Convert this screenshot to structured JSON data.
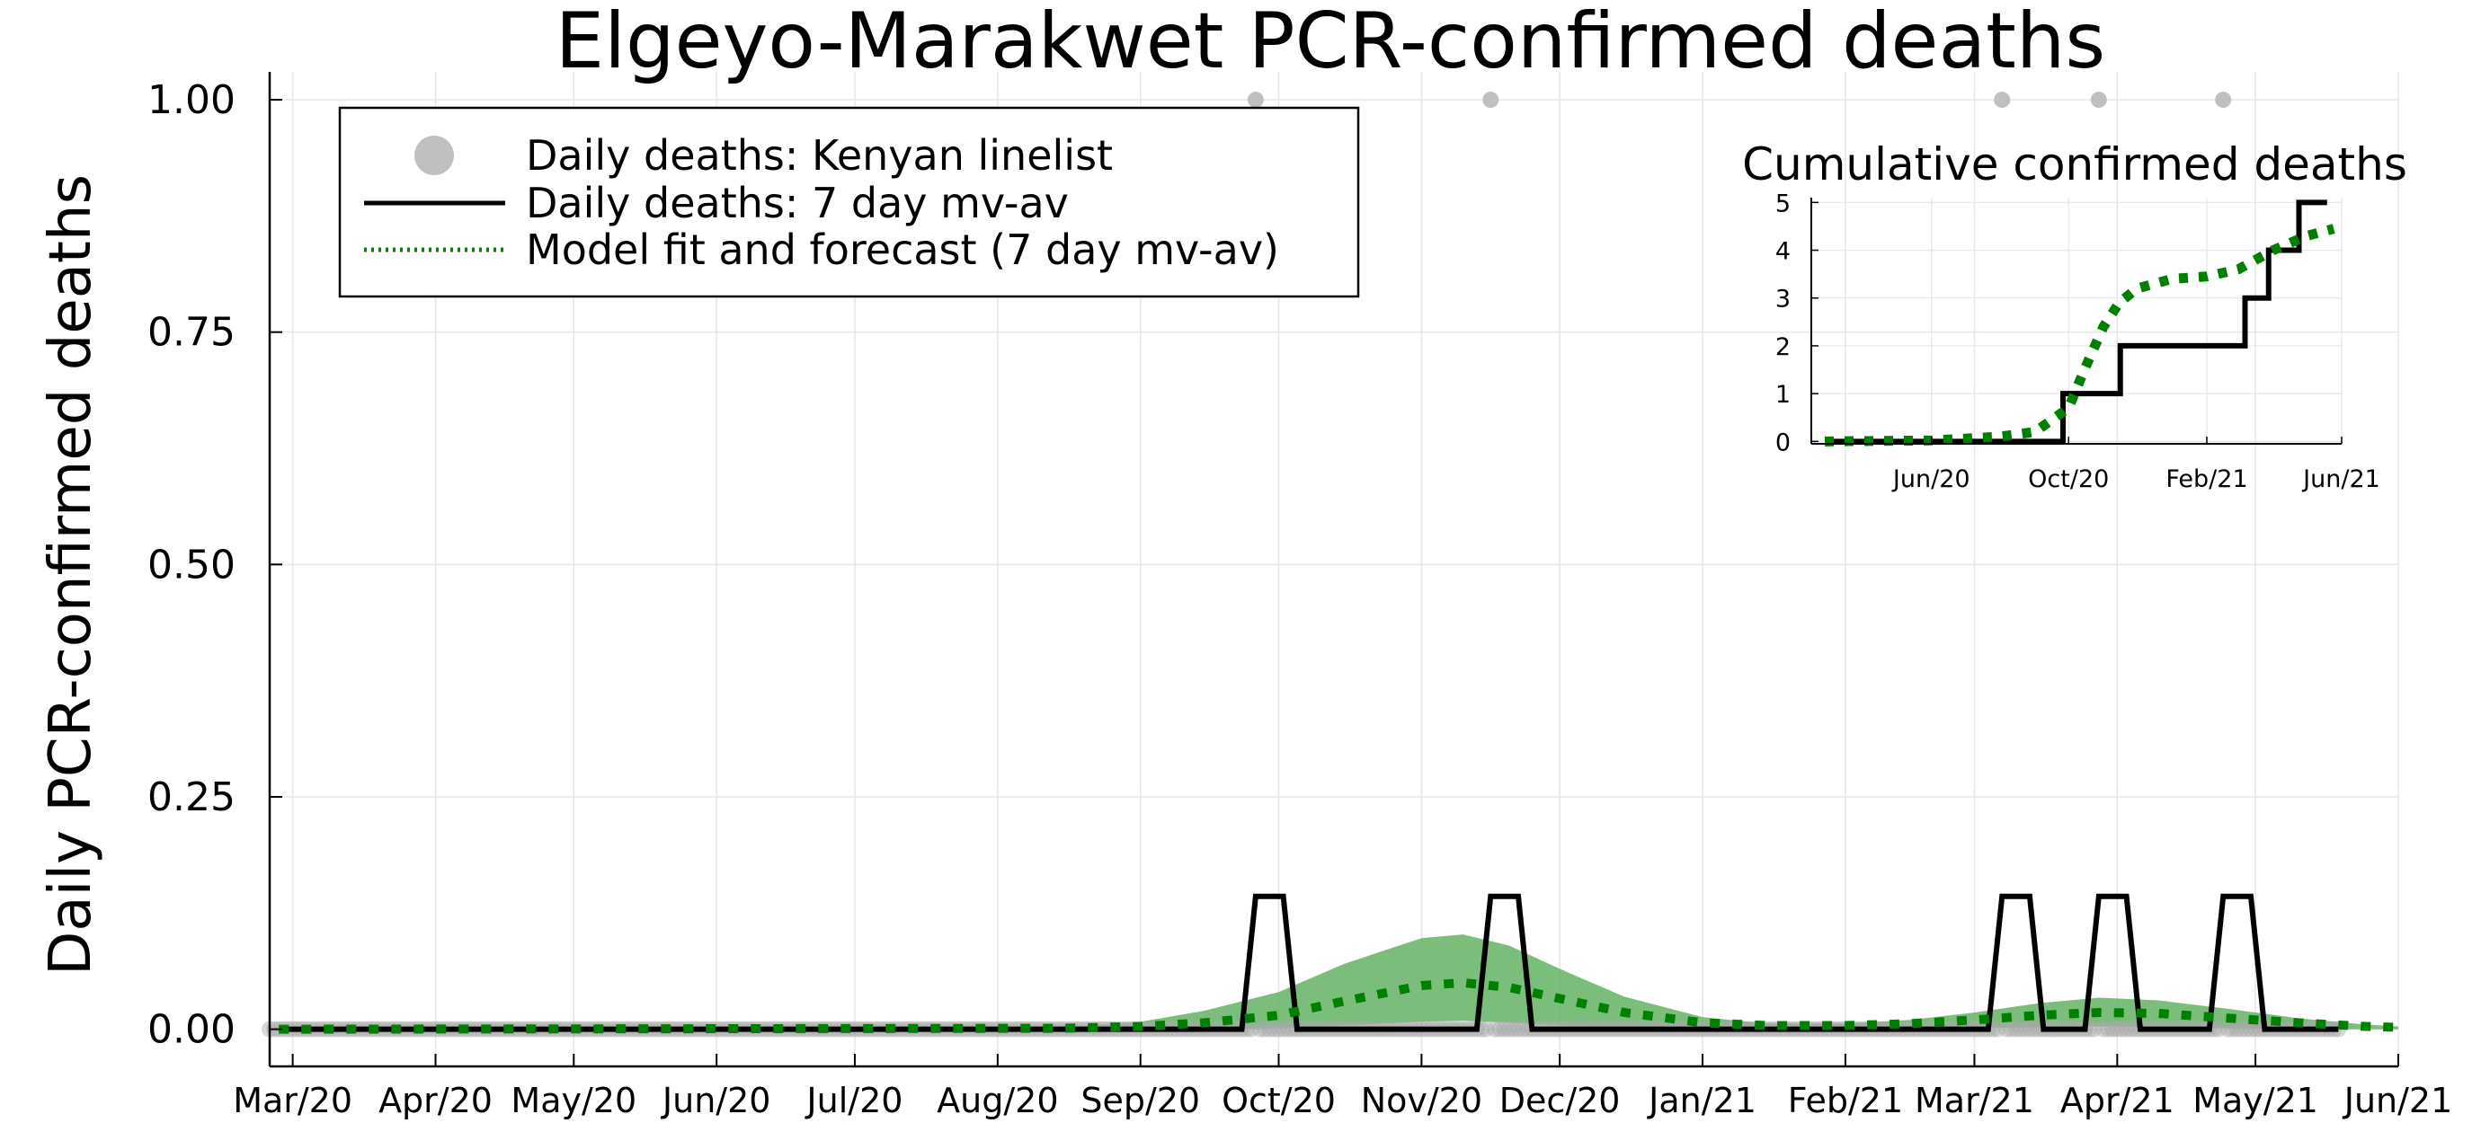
{
  "chart_data": [
    {
      "type": "line",
      "title": "Elgeyo-Marakwet PCR-confirmed deaths",
      "ylabel": "Daily PCR-confirmed deaths",
      "xlabel": "",
      "x_type": "date",
      "xlim": [
        "2020-02-25",
        "2021-06-01"
      ],
      "ylim": [
        -0.04,
        1.03
      ],
      "x_ticks": [
        "2020-03-01",
        "2020-04-01",
        "2020-05-01",
        "2020-06-01",
        "2020-07-01",
        "2020-08-01",
        "2020-09-01",
        "2020-10-01",
        "2020-11-01",
        "2020-12-01",
        "2021-01-01",
        "2021-02-01",
        "2021-03-01",
        "2021-04-01",
        "2021-05-01",
        "2021-06-01"
      ],
      "x_tick_labels": [
        "Mar/20",
        "Apr/20",
        "May/20",
        "Jun/20",
        "Jul/20",
        "Aug/20",
        "Sep/20",
        "Oct/20",
        "Nov/20",
        "Dec/20",
        "Jan/21",
        "Feb/21",
        "Mar/21",
        "Apr/21",
        "May/21",
        "Jun/21"
      ],
      "y_ticks": [
        0,
        0.25,
        0.5,
        0.75,
        1.0
      ],
      "y_tick_labels": [
        "0.00",
        "0.25",
        "0.50",
        "0.75",
        "1.00"
      ],
      "grid": true,
      "legend_position": "top-left",
      "series": [
        {
          "name": "Daily deaths: Kenyan linelist",
          "kind": "scatter",
          "color": "#c0c0c0",
          "nonzero_points": [
            {
              "x": "2020-09-26",
              "y": 1
            },
            {
              "x": "2020-11-16",
              "y": 1
            },
            {
              "x": "2021-03-07",
              "y": 1
            },
            {
              "x": "2021-03-28",
              "y": 1
            },
            {
              "x": "2021-04-24",
              "y": 1
            }
          ],
          "zero_baseline_range": [
            "2020-02-25",
            "2021-05-19"
          ]
        },
        {
          "name": "Daily deaths: 7 day mv-av",
          "kind": "line",
          "color": "#000000",
          "points": [
            {
              "x": "2020-02-27",
              "y": 0
            },
            {
              "x": "2020-09-23",
              "y": 0
            },
            {
              "x": "2020-09-26",
              "y": 0.1429
            },
            {
              "x": "2020-10-02",
              "y": 0.1429
            },
            {
              "x": "2020-10-05",
              "y": 0
            },
            {
              "x": "2020-11-13",
              "y": 0
            },
            {
              "x": "2020-11-16",
              "y": 0.1429
            },
            {
              "x": "2020-11-22",
              "y": 0.1429
            },
            {
              "x": "2020-11-25",
              "y": 0
            },
            {
              "x": "2021-03-04",
              "y": 0
            },
            {
              "x": "2021-03-07",
              "y": 0.1429
            },
            {
              "x": "2021-03-13",
              "y": 0.1429
            },
            {
              "x": "2021-03-16",
              "y": 0
            },
            {
              "x": "2021-03-25",
              "y": 0
            },
            {
              "x": "2021-03-28",
              "y": 0.1429
            },
            {
              "x": "2021-04-03",
              "y": 0.1429
            },
            {
              "x": "2021-04-06",
              "y": 0
            },
            {
              "x": "2021-04-21",
              "y": 0
            },
            {
              "x": "2021-04-24",
              "y": 0.1429
            },
            {
              "x": "2021-04-30",
              "y": 0.1429
            },
            {
              "x": "2021-05-03",
              "y": 0
            },
            {
              "x": "2021-05-19",
              "y": 0
            }
          ]
        },
        {
          "name": "Model fit and forecast (7 day mv-av)",
          "kind": "dotted-line",
          "color": "#008000",
          "band_color": "#5aae5a",
          "points": [
            {
              "x": "2020-02-27",
              "y": 0,
              "lo": 0,
              "hi": 0
            },
            {
              "x": "2020-08-15",
              "y": 0.001,
              "lo": 0,
              "hi": 0.002
            },
            {
              "x": "2020-09-01",
              "y": 0.003,
              "lo": 0,
              "hi": 0.008
            },
            {
              "x": "2020-09-15",
              "y": 0.007,
              "lo": 0,
              "hi": 0.02
            },
            {
              "x": "2020-10-01",
              "y": 0.015,
              "lo": 0.001,
              "hi": 0.04
            },
            {
              "x": "2020-10-15",
              "y": 0.03,
              "lo": 0.004,
              "hi": 0.07
            },
            {
              "x": "2020-11-01",
              "y": 0.047,
              "lo": 0.008,
              "hi": 0.098
            },
            {
              "x": "2020-11-10",
              "y": 0.05,
              "lo": 0.009,
              "hi": 0.102
            },
            {
              "x": "2020-11-20",
              "y": 0.045,
              "lo": 0.007,
              "hi": 0.09
            },
            {
              "x": "2020-12-01",
              "y": 0.033,
              "lo": 0.004,
              "hi": 0.065
            },
            {
              "x": "2020-12-15",
              "y": 0.018,
              "lo": 0.002,
              "hi": 0.035
            },
            {
              "x": "2021-01-01",
              "y": 0.007,
              "lo": 0.001,
              "hi": 0.013
            },
            {
              "x": "2021-01-15",
              "y": 0.004,
              "lo": 0,
              "hi": 0.006
            },
            {
              "x": "2021-02-01",
              "y": 0.004,
              "lo": 0,
              "hi": 0.006
            },
            {
              "x": "2021-02-15",
              "y": 0.006,
              "lo": 0,
              "hi": 0.01
            },
            {
              "x": "2021-03-01",
              "y": 0.01,
              "lo": 0.001,
              "hi": 0.018
            },
            {
              "x": "2021-03-15",
              "y": 0.015,
              "lo": 0.002,
              "hi": 0.028
            },
            {
              "x": "2021-03-28",
              "y": 0.018,
              "lo": 0.003,
              "hi": 0.034
            },
            {
              "x": "2021-04-10",
              "y": 0.017,
              "lo": 0.002,
              "hi": 0.031
            },
            {
              "x": "2021-04-25",
              "y": 0.012,
              "lo": 0.001,
              "hi": 0.022
            },
            {
              "x": "2021-05-10",
              "y": 0.007,
              "lo": 0,
              "hi": 0.012
            },
            {
              "x": "2021-05-25",
              "y": 0.003,
              "lo": 0,
              "hi": 0.005
            },
            {
              "x": "2021-06-01",
              "y": 0.002,
              "lo": 0,
              "hi": 0.003
            }
          ]
        }
      ]
    },
    {
      "type": "line",
      "title": "Cumulative confirmed deaths",
      "position": "inset-top-right",
      "x_type": "date",
      "xlim": [
        "2020-02-15",
        "2021-06-01"
      ],
      "ylim": [
        -0.05,
        5.1
      ],
      "x_ticks": [
        "2020-06-01",
        "2020-10-01",
        "2021-02-01",
        "2021-06-01"
      ],
      "x_tick_labels": [
        "Jun/20",
        "Oct/20",
        "Feb/21",
        "Jun/21"
      ],
      "y_ticks": [
        0,
        1,
        2,
        3,
        4,
        5
      ],
      "y_tick_labels": [
        "0",
        "1",
        "2",
        "3",
        "4",
        "5"
      ],
      "grid": true,
      "series": [
        {
          "kind": "line",
          "color": "#000000",
          "points": [
            {
              "x": "2020-02-27",
              "y": 0
            },
            {
              "x": "2020-09-26",
              "y": 0
            },
            {
              "x": "2020-09-26",
              "y": 1
            },
            {
              "x": "2020-11-16",
              "y": 1
            },
            {
              "x": "2020-11-16",
              "y": 2
            },
            {
              "x": "2021-03-07",
              "y": 2
            },
            {
              "x": "2021-03-07",
              "y": 3
            },
            {
              "x": "2021-03-28",
              "y": 3
            },
            {
              "x": "2021-03-28",
              "y": 4
            },
            {
              "x": "2021-04-24",
              "y": 4
            },
            {
              "x": "2021-04-24",
              "y": 5
            },
            {
              "x": "2021-05-19",
              "y": 5
            }
          ]
        },
        {
          "kind": "dotted-line",
          "color": "#008000",
          "points": [
            {
              "x": "2020-02-27",
              "y": 0
            },
            {
              "x": "2020-06-01",
              "y": 0.02
            },
            {
              "x": "2020-08-01",
              "y": 0.1
            },
            {
              "x": "2020-09-01",
              "y": 0.2
            },
            {
              "x": "2020-10-01",
              "y": 0.7
            },
            {
              "x": "2020-10-15",
              "y": 1.5
            },
            {
              "x": "2020-11-01",
              "y": 2.4
            },
            {
              "x": "2020-11-15",
              "y": 2.9
            },
            {
              "x": "2020-12-01",
              "y": 3.2
            },
            {
              "x": "2021-01-01",
              "y": 3.4
            },
            {
              "x": "2021-02-01",
              "y": 3.45
            },
            {
              "x": "2021-03-01",
              "y": 3.6
            },
            {
              "x": "2021-04-01",
              "y": 4.0
            },
            {
              "x": "2021-05-01",
              "y": 4.3
            },
            {
              "x": "2021-05-25",
              "y": 4.45
            }
          ]
        }
      ]
    }
  ]
}
